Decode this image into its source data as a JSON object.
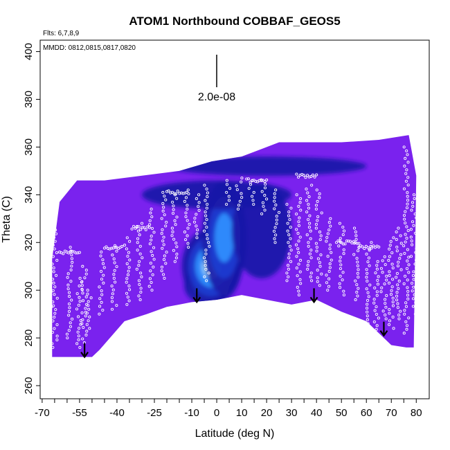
{
  "chart_data": {
    "type": "heatmap",
    "title": "ATOM1 Northbound COBBAF_GEOS5",
    "flights_note": "Flts: 6,7,8,9",
    "dates_note": "MMDD: 0812,0815,0817,0820",
    "xlabel": "Latitude (deg N)",
    "ylabel": "Theta (C)",
    "xlim": [
      -70,
      80
    ],
    "ylim": [
      260,
      400
    ],
    "x_ticks": [
      -70,
      -55,
      -40,
      -25,
      -10,
      0,
      10,
      20,
      30,
      40,
      50,
      60,
      70,
      80
    ],
    "x_minor_ticks": [
      -65,
      -60,
      -50,
      -45,
      -35,
      -30,
      -20,
      -15,
      -5,
      5,
      15,
      25,
      35,
      45,
      55,
      65,
      75
    ],
    "y_ticks": [
      260,
      280,
      300,
      320,
      340,
      360,
      380,
      400
    ],
    "scale_bar_label": "2.0e-08",
    "colors": {
      "background_field": "#7a22ee",
      "low": "#7a22ee",
      "mid_low": "#1a1aa8",
      "mid": "#3090ff",
      "mid_high": "#9ed8ff",
      "high": "#ffd23c",
      "peak": "#d81a10",
      "points": "#ffffff"
    },
    "domain_top_theta": [
      {
        "lat": -66,
        "theta": 313
      },
      {
        "lat": -63,
        "theta": 337
      },
      {
        "lat": -56,
        "theta": 346
      },
      {
        "lat": -45,
        "theta": 346
      },
      {
        "lat": -30,
        "theta": 348
      },
      {
        "lat": -15,
        "theta": 350
      },
      {
        "lat": -2,
        "theta": 354
      },
      {
        "lat": 10,
        "theta": 356
      },
      {
        "lat": 25,
        "theta": 362
      },
      {
        "lat": 50,
        "theta": 362
      },
      {
        "lat": 65,
        "theta": 363
      },
      {
        "lat": 77,
        "theta": 365
      },
      {
        "lat": 80,
        "theta": 348
      }
    ],
    "domain_bottom_theta": [
      {
        "lat": -66,
        "theta": 272
      },
      {
        "lat": -50,
        "theta": 272
      },
      {
        "lat": -47,
        "theta": 275
      },
      {
        "lat": -37,
        "theta": 287
      },
      {
        "lat": -28,
        "theta": 290
      },
      {
        "lat": -20,
        "theta": 293
      },
      {
        "lat": -10,
        "theta": 295
      },
      {
        "lat": 0,
        "theta": 296
      },
      {
        "lat": 10,
        "theta": 298
      },
      {
        "lat": 20,
        "theta": 296
      },
      {
        "lat": 30,
        "theta": 294
      },
      {
        "lat": 40,
        "theta": 296
      },
      {
        "lat": 50,
        "theta": 291
      },
      {
        "lat": 60,
        "theta": 287
      },
      {
        "lat": 70,
        "theta": 277
      },
      {
        "lat": 76,
        "theta": 276
      },
      {
        "lat": 79,
        "theta": 276
      }
    ],
    "tropopause_arrows": [
      {
        "lat": -53,
        "theta": 272
      },
      {
        "lat": -8,
        "theta": 295
      },
      {
        "lat": 39,
        "theta": 295
      },
      {
        "lat": 67,
        "theta": 281
      }
    ],
    "hotspots": [
      {
        "lat": -4,
        "theta": 302,
        "rlat": 9,
        "rtheta": 8,
        "level": 1.0
      },
      {
        "lat": -2,
        "theta": 310,
        "rlat": 12,
        "rtheta": 16,
        "level": 0.55
      },
      {
        "lat": 3,
        "theta": 322,
        "rlat": 9,
        "rtheta": 24,
        "level": 0.35
      },
      {
        "lat": 20,
        "theta": 352,
        "rlat": 40,
        "rtheta": 4,
        "level": 0.22
      },
      {
        "lat": 18,
        "theta": 325,
        "rlat": 12,
        "rtheta": 20,
        "level": 0.18
      },
      {
        "lat": 0,
        "theta": 340,
        "rlat": 30,
        "rtheta": 6,
        "level": 0.15
      }
    ],
    "flight_tracks": [
      {
        "lat": -67,
        "theta0": 282,
        "theta1": 312
      },
      {
        "lat": -65,
        "theta0": 276,
        "theta1": 330
      },
      {
        "lat": -59,
        "theta0": 280,
        "theta1": 318
      },
      {
        "lat": -55,
        "theta0": 276,
        "theta1": 305
      },
      {
        "lat": -53,
        "theta0": 278,
        "theta1": 310
      },
      {
        "lat": -51,
        "theta0": 284,
        "theta1": 300
      },
      {
        "lat": -46,
        "theta0": 290,
        "theta1": 316
      },
      {
        "lat": -41,
        "theta0": 292,
        "theta1": 318
      },
      {
        "lat": -36,
        "theta0": 294,
        "theta1": 322
      },
      {
        "lat": -31,
        "theta0": 296,
        "theta1": 328
      },
      {
        "lat": -26,
        "theta0": 300,
        "theta1": 334
      },
      {
        "lat": -21,
        "theta0": 305,
        "theta1": 341
      },
      {
        "lat": -17,
        "theta0": 312,
        "theta1": 340
      },
      {
        "lat": -12,
        "theta0": 318,
        "theta1": 342
      },
      {
        "lat": -8,
        "theta0": 322,
        "theta1": 340
      },
      {
        "lat": -4,
        "theta0": 304,
        "theta1": 344
      },
      {
        "lat": 5,
        "theta0": 336,
        "theta1": 346
      },
      {
        "lat": 9,
        "theta0": 334,
        "theta1": 347
      },
      {
        "lat": 14,
        "theta0": 336,
        "theta1": 346
      },
      {
        "lat": 19,
        "theta0": 332,
        "theta1": 346
      },
      {
        "lat": 24,
        "theta0": 320,
        "theta1": 342
      },
      {
        "lat": 29,
        "theta0": 304,
        "theta1": 336
      },
      {
        "lat": 33,
        "theta0": 298,
        "theta1": 340
      },
      {
        "lat": 37,
        "theta0": 304,
        "theta1": 344
      },
      {
        "lat": 41,
        "theta0": 302,
        "theta1": 342
      },
      {
        "lat": 45,
        "theta0": 300,
        "theta1": 330
      },
      {
        "lat": 50,
        "theta0": 298,
        "theta1": 328
      },
      {
        "lat": 56,
        "theta0": 296,
        "theta1": 326
      },
      {
        "lat": 61,
        "theta0": 286,
        "theta1": 320
      },
      {
        "lat": 64,
        "theta0": 282,
        "theta1": 312
      },
      {
        "lat": 67,
        "theta0": 288,
        "theta1": 314
      },
      {
        "lat": 70,
        "theta0": 284,
        "theta1": 322
      },
      {
        "lat": 73,
        "theta0": 288,
        "theta1": 326
      },
      {
        "lat": 76,
        "theta0": 282,
        "theta1": 360
      },
      {
        "lat": 79,
        "theta0": 290,
        "theta1": 340
      }
    ],
    "level_legs": [
      {
        "lat0": -63,
        "lat1": -55,
        "theta": 316
      },
      {
        "lat0": -45,
        "lat1": -38,
        "theta": 318
      },
      {
        "lat0": -34,
        "lat1": -27,
        "theta": 326
      },
      {
        "lat0": -20,
        "lat1": -12,
        "theta": 341
      },
      {
        "lat0": 12,
        "lat1": 20,
        "theta": 346
      },
      {
        "lat0": 32,
        "lat1": 40,
        "theta": 348
      },
      {
        "lat0": 48,
        "lat1": 57,
        "theta": 320
      },
      {
        "lat0": 57,
        "lat1": 65,
        "theta": 318
      }
    ]
  }
}
